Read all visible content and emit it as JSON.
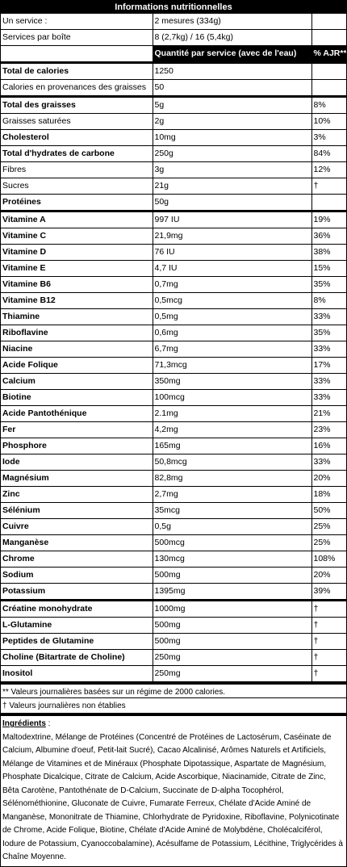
{
  "title": "Informations nutritionnelles",
  "top_rows": [
    {
      "label": "Un service :",
      "value": "2 mesures (334g)"
    },
    {
      "label": "Services par boîte",
      "value": "8 (2,7kg) / 16 (5,4kg)"
    }
  ],
  "header": {
    "col2": "Quantité par service (avec de l'eau)",
    "col3": "% AJR**"
  },
  "calorie_rows": [
    {
      "label": "Total de calories",
      "value": "1250",
      "bold": true
    },
    {
      "label": "Calories en provenances des graisses",
      "value": "50",
      "bold": false
    }
  ],
  "macro_rows": [
    {
      "label": "Total des graisses",
      "value": "5g",
      "pct": "8%",
      "bold": true
    },
    {
      "label": "Graisses saturées",
      "value": "2g",
      "pct": "10%",
      "bold": false
    },
    {
      "label": "Cholesterol",
      "value": "10mg",
      "pct": "3%",
      "bold": true
    },
    {
      "label": "Total d'hydrates de carbone",
      "value": "250g",
      "pct": "84%",
      "bold": true
    },
    {
      "label": "Fibres",
      "value": "3g",
      "pct": "12%",
      "bold": false
    },
    {
      "label": "Sucres",
      "value": "21g",
      "pct": "†",
      "bold": false
    },
    {
      "label": "Protéines",
      "value": "50g",
      "pct": "",
      "bold": true
    }
  ],
  "vitamin_rows": [
    {
      "label": "Vitamine A",
      "value": "997 IU",
      "pct": "19%"
    },
    {
      "label": "Vitamine C",
      "value": "21,9mg",
      "pct": "36%"
    },
    {
      "label": "Vitamine D",
      "value": "76 IU",
      "pct": "38%"
    },
    {
      "label": "Vitamine E",
      "value": "4,7 IU",
      "pct": "15%"
    },
    {
      "label": "Vitamine B6",
      "value": "0,7mg",
      "pct": "35%"
    },
    {
      "label": "Vitamine B12",
      "value": "0,5mcg",
      "pct": "8%"
    },
    {
      "label": "Thiamine",
      "value": "0,5mg",
      "pct": "33%"
    },
    {
      "label": "Riboflavine",
      "value": "0,6mg",
      "pct": "35%"
    },
    {
      "label": "Niacine",
      "value": "6,7mg",
      "pct": "33%"
    },
    {
      "label": "Acide Folique",
      "value": "71,3mcg",
      "pct": "17%"
    },
    {
      "label": "Calcium",
      "value": "350mg",
      "pct": "33%"
    },
    {
      "label": "Biotine",
      "value": "100mcg",
      "pct": "33%"
    },
    {
      "label": "Acide Pantothénique",
      "value": "2.1mg",
      "pct": "21%"
    },
    {
      "label": "Fer",
      "value": "4,2mg",
      "pct": "23%"
    },
    {
      "label": "Phosphore",
      "value": "165mg",
      "pct": "16%"
    },
    {
      "label": "Iode",
      "value": "50,8mcg",
      "pct": "33%"
    },
    {
      "label": "Magnésium",
      "value": "82,8mg",
      "pct": "20%"
    },
    {
      "label": "Zinc",
      "value": "2,7mg",
      "pct": "18%"
    },
    {
      "label": "Sélénium",
      "value": "35mcg",
      "pct": "50%"
    },
    {
      "label": "Cuivre",
      "value": "0,5g",
      "pct": "25%"
    },
    {
      "label": "Manganèse",
      "value": "500mcg",
      "pct": "25%"
    },
    {
      "label": "Chrome",
      "value": "130mcg",
      "pct": "108%"
    },
    {
      "label": "Sodium",
      "value": "500mg",
      "pct": "20%"
    },
    {
      "label": "Potassium",
      "value": "1395mg",
      "pct": "39%"
    }
  ],
  "supplement_rows": [
    {
      "label": "Créatine monohydrate",
      "value": "1000mg",
      "pct": "†"
    },
    {
      "label": "L-Glutamine",
      "value": "500mg",
      "pct": "†"
    },
    {
      "label": "Peptides de Glutamine",
      "value": "500mg",
      "pct": "†"
    },
    {
      "label": "Choline (Bitartrate de Choline)",
      "value": "250mg",
      "pct": "†"
    },
    {
      "label": "Inositol",
      "value": "250mg",
      "pct": "†"
    }
  ],
  "notes": [
    "** Valeurs journalières basées sur un régime de 2000 calories.",
    "† Valeurs journalières non établies"
  ],
  "ingredients": {
    "title": "Ingrédients",
    "text": "Maltodextrine, Mélange de Protéines (Concentré de Protéines de Lactosérum, Caséinate de Calcium, Albumine d'oeuf, Petit-lait Sucré), Cacao Alcalinisé, Arômes Naturels et Artificiels, Mélange de Vitamines et de Minéraux (Phosphate Dipotassique, Aspartate de Magnésium, Phosphate Dicalcique, Citrate de Calcium, Acide Ascorbique, Niacinamide, Citrate de Zinc, Bêta Carotène, Pantothénate de D-Calcium, Succinate de D-alpha Tocophérol, Sélénométhionine, Gluconate de Cuivre, Fumarate Ferreux, Chélate d'Acide Aminé de Manganèse, Mononitrate de Thiamine, Chlorhydrate de Pyridoxine, Riboflavine, Polynicotinate de Chrome, Acide Folique, Biotine, Chélate d'Acide Aminé de Molybdène, Cholécalciférol, Iodure de Potassium, Cyanoccobalamine), Acésulfame de Potassium, Lécithine, Triglycérides à Chaîne Moyenne."
  }
}
